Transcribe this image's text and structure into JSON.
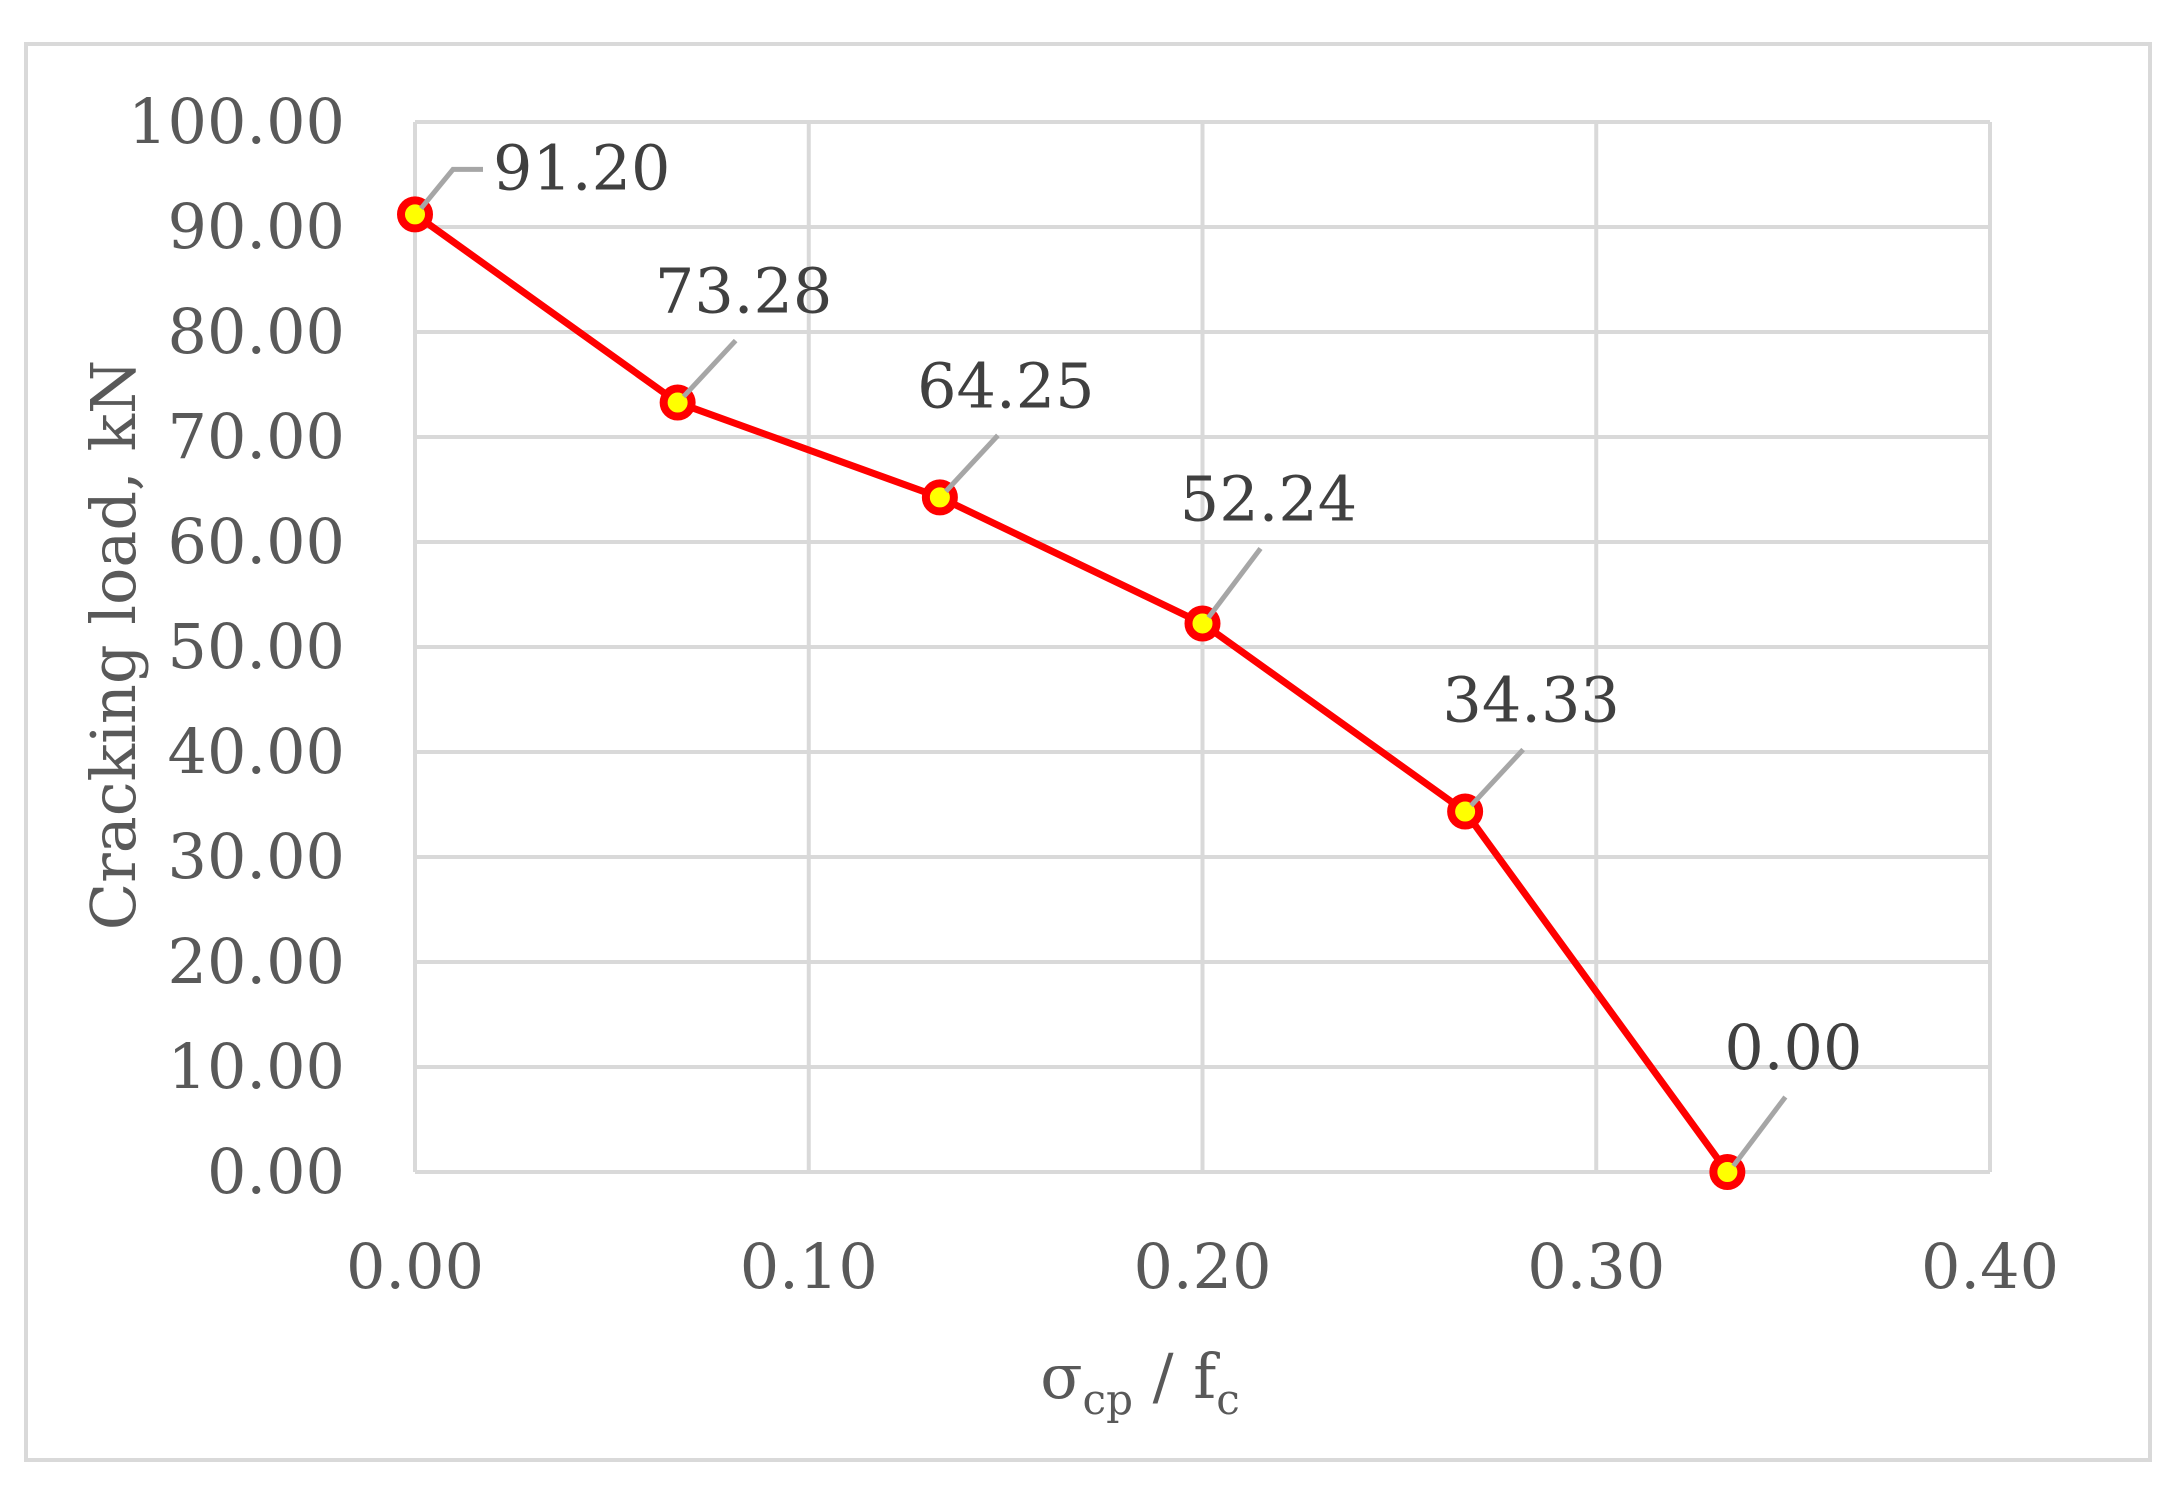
{
  "chart_data": {
    "type": "line",
    "xlabel": {
      "base": "σ",
      "base_sub": "cp",
      "sep": " / ",
      "denom": "f",
      "denom_sub": "c"
    },
    "ylabel": "Cracking load, kN",
    "xlim": [
      0,
      0.4
    ],
    "ylim": [
      0,
      100
    ],
    "x_ticks": [
      "0.00",
      "0.10",
      "0.20",
      "0.30",
      "0.40"
    ],
    "y_ticks": [
      "0.00",
      "10.00",
      "20.00",
      "30.00",
      "40.00",
      "50.00",
      "60.00",
      "70.00",
      "80.00",
      "90.00",
      "100.00"
    ],
    "grid": true,
    "series": [
      {
        "x": [
          0.0,
          0.0667,
          0.1333,
          0.2,
          0.2667,
          0.3333
        ],
        "values": [
          91.2,
          73.28,
          64.25,
          52.24,
          34.33,
          0.0
        ],
        "labels": [
          "91.20",
          "73.28",
          "64.25",
          "52.24",
          "34.33",
          "0.00"
        ]
      }
    ],
    "colors": {
      "line": "#ff0000",
      "marker_fill": "#ffff00",
      "grid": "#d9d9d9",
      "leader": "#a6a6a6"
    }
  }
}
